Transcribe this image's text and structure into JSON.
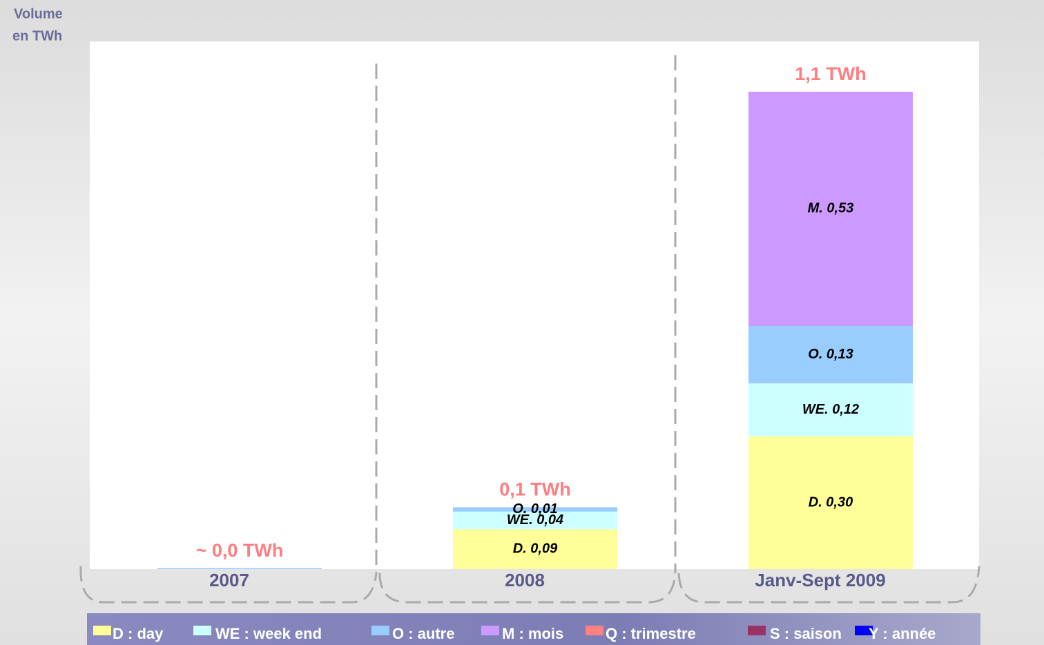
{
  "chart_data": {
    "type": "stacked-bar",
    "ylabel": [
      "Volume",
      "en TWh"
    ],
    "categories": [
      "2007",
      "2008",
      "Janv-Sept 2009"
    ],
    "total_labels": [
      "~ 0,0 TWh",
      "0,1 TWh",
      "1,1 TWh"
    ],
    "series": [
      {
        "name": "D : day",
        "color": "#ffff99",
        "values": [
          0,
          0.09,
          0.3
        ],
        "value_labels": [
          null,
          "D. 0,09",
          "D. 0,30"
        ]
      },
      {
        "name": "WE : week end",
        "color": "#ccffff",
        "values": [
          0,
          0.04,
          0.12
        ],
        "value_labels": [
          null,
          "WE. 0,04",
          "WE. 0,12"
        ]
      },
      {
        "name": "O : autre",
        "color": "#99ccff",
        "values": [
          0.002,
          0.01,
          0.13
        ],
        "value_labels": [
          null,
          "O. 0,01",
          "O. 0,13"
        ]
      },
      {
        "name": "M : mois",
        "color": "#cc99ff",
        "values": [
          0,
          0,
          0.53
        ],
        "value_labels": [
          null,
          null,
          "M. 0,53"
        ]
      },
      {
        "name": "Q : trimestre",
        "color": "#ff8080",
        "values": [
          0,
          0,
          0
        ],
        "value_labels": [
          null,
          null,
          null
        ]
      },
      {
        "name": "S : saison",
        "color": "#993366",
        "values": [
          0,
          0,
          0
        ],
        "value_labels": [
          null,
          null,
          null
        ]
      },
      {
        "name": "Y : année",
        "color": "#0000ff",
        "values": [
          0,
          0,
          0
        ],
        "value_labels": [
          null,
          null,
          null
        ]
      }
    ],
    "total_color": "#ff7c80",
    "legend": "bottom"
  }
}
